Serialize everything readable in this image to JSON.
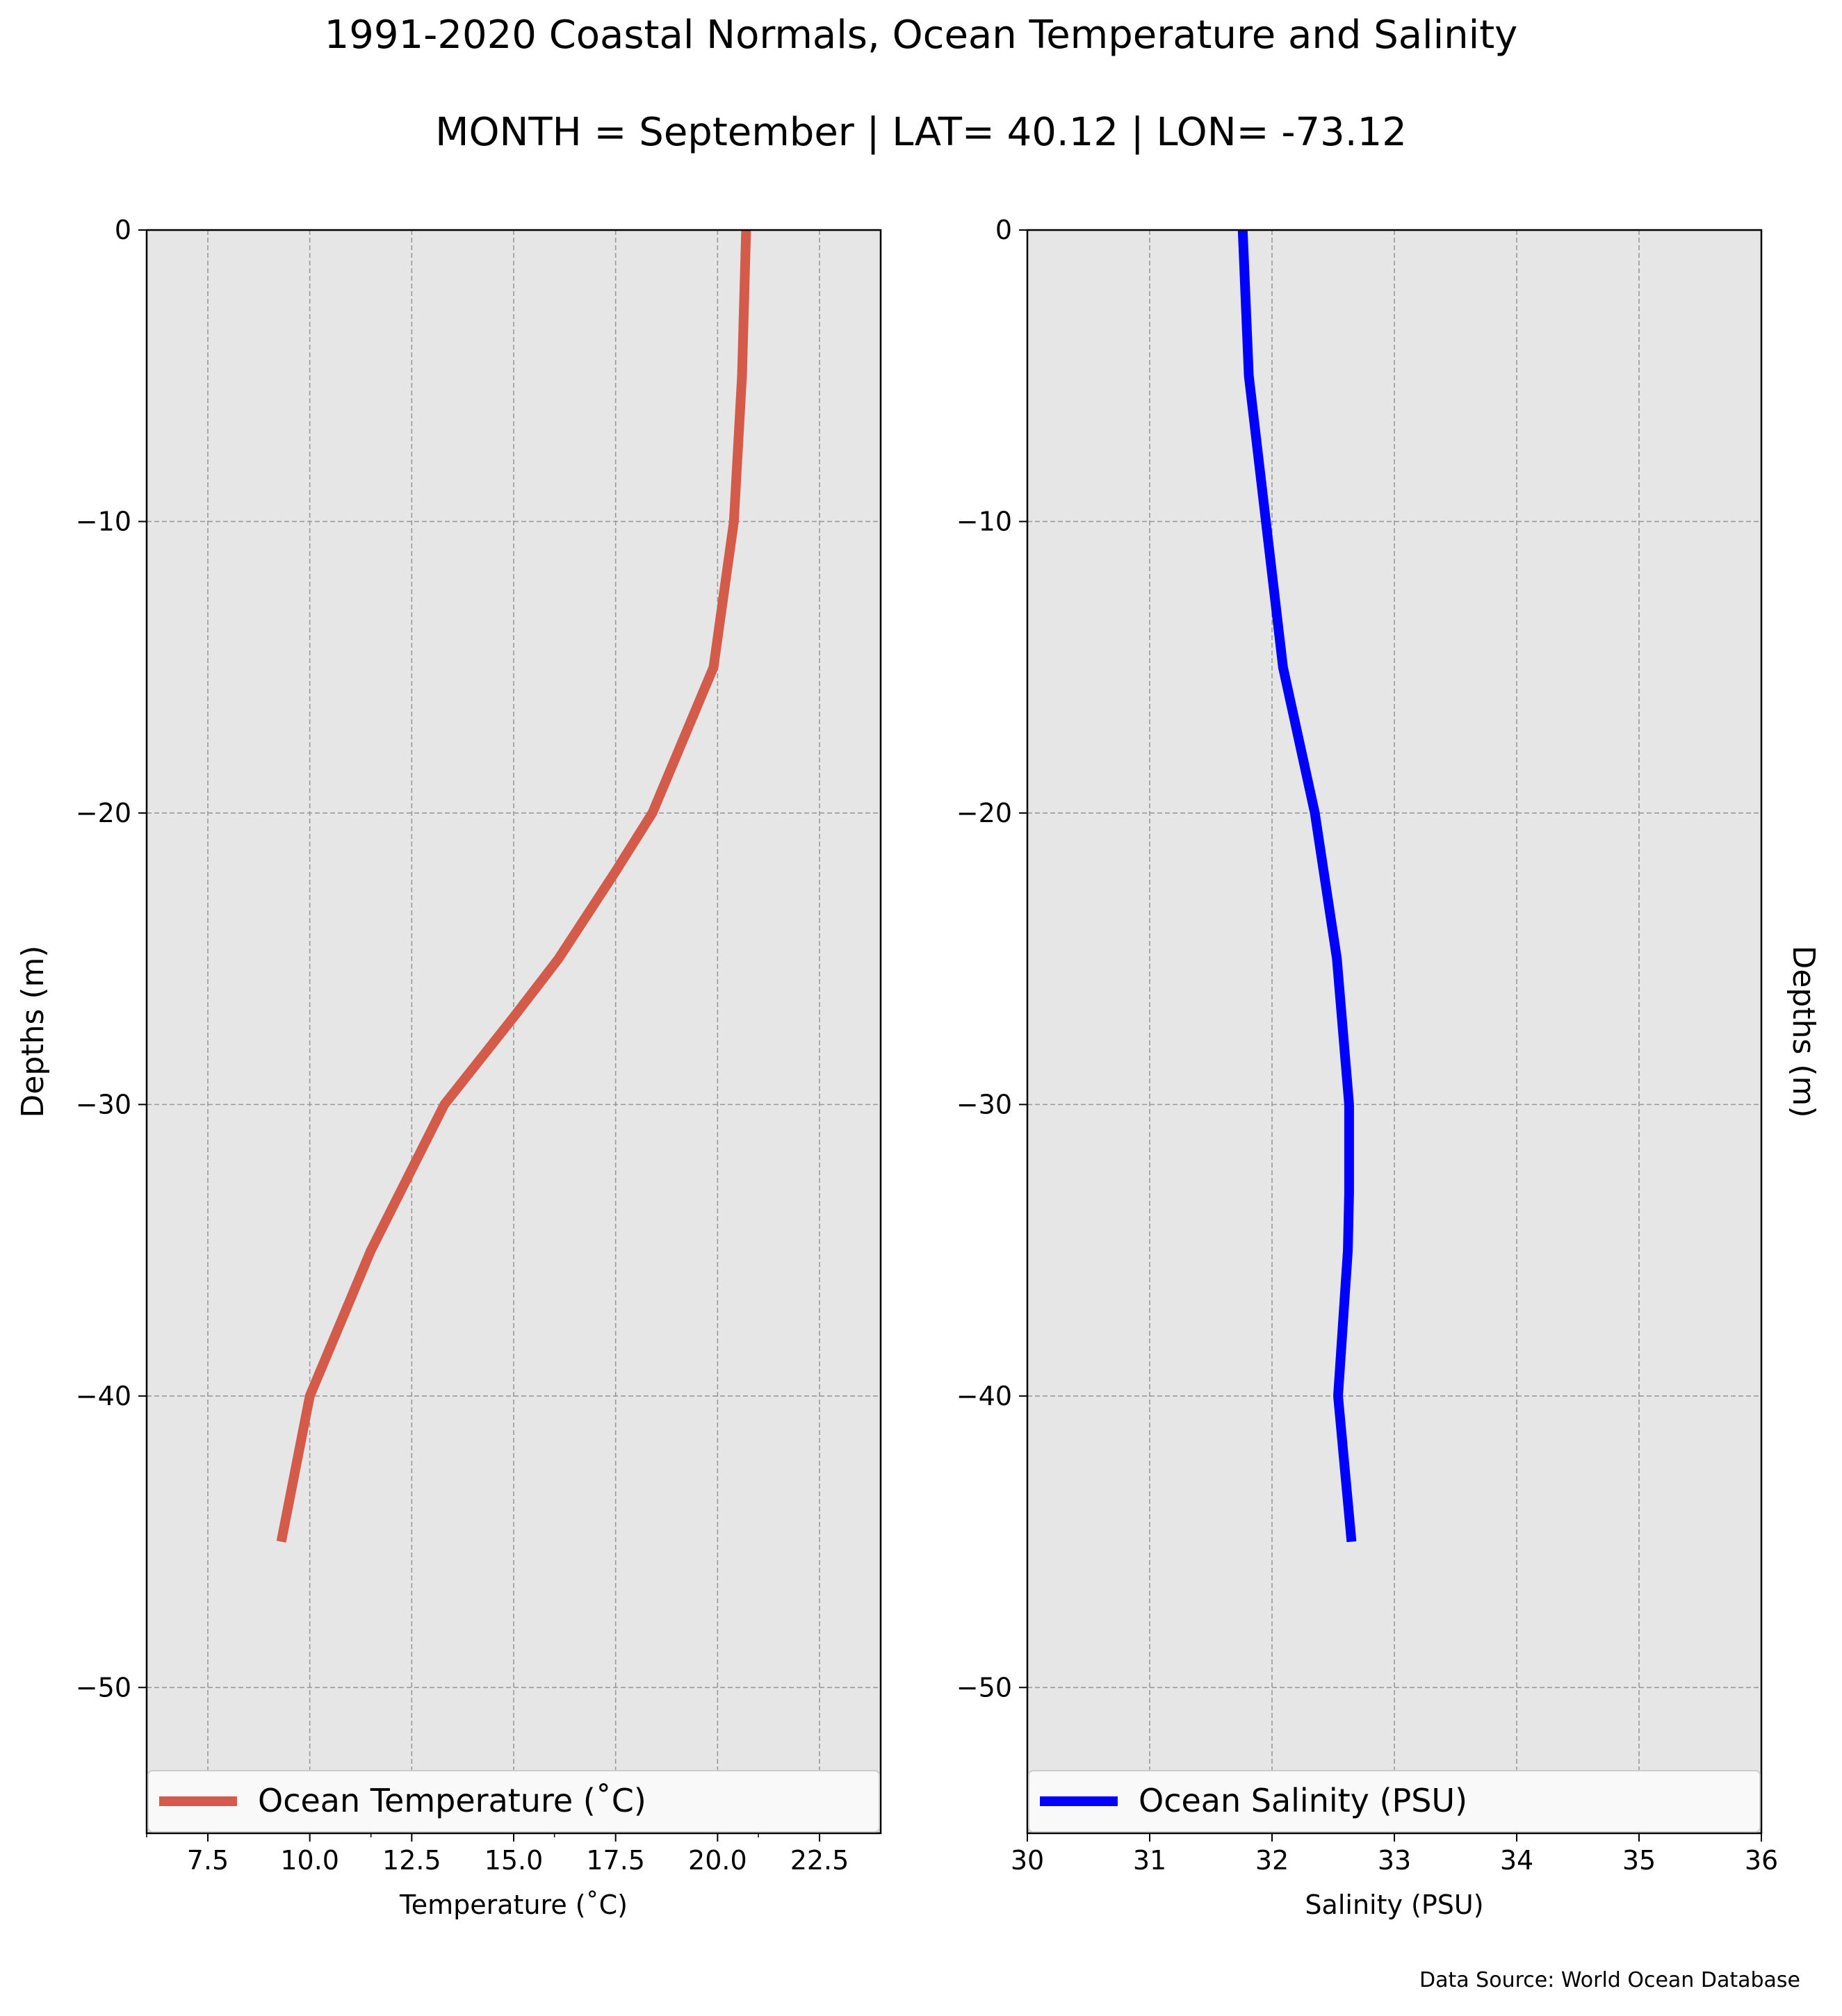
{
  "figure": {
    "title": "1991-2020 Coastal Normals, Ocean Temperature and Salinity",
    "subtitle": "MONTH = September | LAT= 40.12 | LON= -73.12",
    "source": "Data Source: World Ocean Database"
  },
  "colors": {
    "panel_background": "#e6e6e6",
    "grid": "#999999",
    "temperature_line": "#d45b4a",
    "salinity_line": "#0000ff"
  },
  "chart_data": [
    {
      "type": "line",
      "xlabel": "Temperature ($^\\circ$C)",
      "xlabel_display": "Temperature (˚C)",
      "ylabel": "Depths (m)",
      "xlim": [
        6,
        24
      ],
      "ylim": [
        -55,
        0
      ],
      "xticks": [
        7.5,
        10.0,
        12.5,
        15.0,
        17.5,
        20.0,
        22.5
      ],
      "xtick_labels": [
        "7.5",
        "10.0",
        "12.5",
        "15.0",
        "17.5",
        "20.0",
        "22.5"
      ],
      "xminor_ticks": [
        6,
        11.5,
        16,
        21
      ],
      "yticks": [
        0,
        -10,
        -20,
        -30,
        -40,
        -50
      ],
      "ytick_labels": [
        "0",
        "−10",
        "−20",
        "−30",
        "−40",
        "−50"
      ],
      "grid": true,
      "legend": "bottom",
      "series": [
        {
          "name": "Ocean Temperature (˚C)",
          "color": "#d45b4a",
          "x": [
            20.7,
            20.6,
            20.4,
            19.9,
            18.4,
            17.5,
            16.1,
            15.0,
            13.3,
            11.5,
            10.0,
            9.3
          ],
          "y": [
            0,
            -5,
            -10,
            -15,
            -20,
            -22,
            -25,
            -27,
            -30,
            -35,
            -40,
            -45
          ]
        }
      ]
    },
    {
      "type": "line",
      "xlabel": "Salinity (PSU)",
      "ylabel": "Depths (m)",
      "ylabel_position": "right",
      "xlim": [
        30,
        36
      ],
      "ylim": [
        -55,
        0
      ],
      "xticks": [
        30,
        31,
        32,
        33,
        34,
        35,
        36
      ],
      "xtick_labels": [
        "30",
        "31",
        "32",
        "33",
        "34",
        "35",
        "36"
      ],
      "yticks": [
        0,
        -10,
        -20,
        -30,
        -40,
        -50
      ],
      "ytick_labels": [
        "0",
        "−10",
        "−20",
        "−30",
        "−40",
        "−50"
      ],
      "grid": true,
      "legend": "bottom",
      "series": [
        {
          "name": "Ocean Salinity (PSU)",
          "color": "#0000ff",
          "x": [
            31.76,
            31.81,
            31.95,
            32.09,
            32.35,
            32.53,
            32.63,
            32.63,
            32.62,
            32.54,
            32.65
          ],
          "y": [
            0,
            -5,
            -10,
            -15,
            -20,
            -25,
            -30,
            -33,
            -35,
            -40,
            -45
          ]
        }
      ]
    }
  ]
}
